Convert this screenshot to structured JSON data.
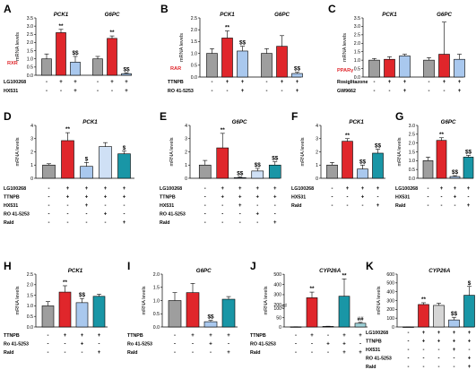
{
  "colors": {
    "gray": "#9e9e9e",
    "red": "#e0262b",
    "blue": "#a9c8ee",
    "teal": "#1996a6",
    "receptor": "#e0262b"
  },
  "chart_data": [
    {
      "panel": "A",
      "type": "bar",
      "receptor": "RXR",
      "titles": [
        "PCK1",
        "G6PC"
      ],
      "ylabel": "mRNA levels",
      "yticks": [
        "0.0",
        "0.5",
        "1.0",
        "1.5",
        "2.0",
        "2.5",
        "3.0",
        "3.5"
      ],
      "ylim": [
        0,
        3.5
      ],
      "series": [
        {
          "gene": "PCK1",
          "values": [
            1.0,
            2.6,
            0.8
          ],
          "errors": [
            0.3,
            0.2,
            0.35
          ],
          "colors": [
            "gray",
            "red",
            "blue"
          ],
          "annotations": [
            "",
            "**",
            "$$"
          ]
        },
        {
          "gene": "G6PC",
          "values": [
            1.0,
            2.25,
            0.1
          ],
          "errors": [
            0.15,
            0.15,
            0.05
          ],
          "colors": [
            "gray",
            "red",
            "blue"
          ],
          "annotations": [
            "",
            "**",
            "$$"
          ]
        }
      ],
      "conditions": [
        {
          "label": "LG100268",
          "signs": [
            "-",
            "+",
            "+",
            "-",
            "+",
            "+"
          ]
        },
        {
          "label": "HX531",
          "signs": [
            "-",
            "-",
            "+",
            "-",
            "-",
            "+"
          ]
        }
      ]
    },
    {
      "panel": "B",
      "type": "bar",
      "receptor": "RAR",
      "titles": [
        "PCK1",
        "G6PC"
      ],
      "ylabel": "mRNA levels",
      "yticks": [
        "0.0",
        "0.5",
        "1.0",
        "1.5",
        "2.0",
        "2.5"
      ],
      "ylim": [
        0,
        2.5
      ],
      "series": [
        {
          "gene": "PCK1",
          "values": [
            1.0,
            1.65,
            1.1
          ],
          "errors": [
            0.2,
            0.3,
            0.2
          ],
          "colors": [
            "gray",
            "red",
            "blue"
          ],
          "annotations": [
            "",
            "**",
            "$$"
          ]
        },
        {
          "gene": "G6PC",
          "values": [
            1.0,
            1.3,
            0.15
          ],
          "errors": [
            0.2,
            0.45,
            0.05
          ],
          "colors": [
            "gray",
            "red",
            "blue"
          ],
          "annotations": [
            "",
            "",
            "$$"
          ]
        }
      ],
      "conditions": [
        {
          "label": "TTNPB",
          "signs": [
            "-",
            "+",
            "+",
            "-",
            "+",
            "+"
          ]
        },
        {
          "label": "RO 41-5253",
          "signs": [
            "-",
            "-",
            "+",
            "-",
            "-",
            "+"
          ]
        }
      ]
    },
    {
      "panel": "C",
      "type": "bar",
      "receptor": "PPARγ",
      "titles": [
        "PCK1",
        "G6PC"
      ],
      "ylabel": "mRNA levels",
      "yticks": [
        "0.0",
        "0.5",
        "1.0",
        "1.5",
        "2.0",
        "2.5",
        "3.0",
        "3.5"
      ],
      "ylim": [
        0,
        3.5
      ],
      "series": [
        {
          "gene": "PCK1",
          "values": [
            1.0,
            1.05,
            1.25
          ],
          "errors": [
            0.1,
            0.15,
            0.1
          ],
          "colors": [
            "gray",
            "red",
            "blue"
          ],
          "annotations": [
            "",
            "",
            ""
          ]
        },
        {
          "gene": "G6PC",
          "values": [
            1.0,
            1.35,
            1.05
          ],
          "errors": [
            0.15,
            1.9,
            0.3
          ],
          "colors": [
            "gray",
            "red",
            "blue"
          ],
          "annotations": [
            "",
            "",
            ""
          ]
        }
      ],
      "conditions": [
        {
          "label": "Rosiglitazone",
          "signs": [
            "-",
            "+",
            "+",
            "-",
            "+",
            "+"
          ]
        },
        {
          "label": "GW9662",
          "signs": [
            "-",
            "-",
            "+",
            "-",
            "-",
            "+"
          ]
        }
      ]
    },
    {
      "panel": "D",
      "type": "bar",
      "receptor": "",
      "titles": [
        "PCK1"
      ],
      "ylabel": "mRNA levels",
      "yticks": [
        "0",
        "1",
        "2",
        "3",
        "4"
      ],
      "ylim": [
        0,
        4
      ],
      "series": [
        {
          "gene": "PCK1",
          "values": [
            1.0,
            2.85,
            0.9,
            2.4,
            1.85
          ],
          "errors": [
            0.1,
            0.6,
            0.3,
            0.3,
            0.2
          ],
          "colors": [
            "gray",
            "red",
            "blue",
            "lightblue",
            "teal"
          ],
          "annotations": [
            "",
            "**",
            "$",
            "",
            "$"
          ]
        }
      ],
      "conditions": [
        {
          "label": "LG100268",
          "signs": [
            "-",
            "+",
            "+",
            "+",
            "+"
          ]
        },
        {
          "label": "TTNPB",
          "signs": [
            "-",
            "+",
            "+",
            "+",
            "+"
          ]
        },
        {
          "label": "HX531",
          "signs": [
            "-",
            "-",
            "+",
            "-",
            "-"
          ]
        },
        {
          "label": "RO 41-5253",
          "signs": [
            "-",
            "-",
            "-",
            "+",
            "-"
          ]
        },
        {
          "label": "Rald",
          "signs": [
            "-",
            "-",
            "-",
            "-",
            "+"
          ]
        }
      ]
    },
    {
      "panel": "E",
      "type": "bar",
      "receptor": "",
      "titles": [
        "G6PC"
      ],
      "ylabel": "mRNA levels",
      "yticks": [
        "0",
        "1",
        "2",
        "3",
        "4"
      ],
      "ylim": [
        0,
        4
      ],
      "series": [
        {
          "gene": "G6PC",
          "values": [
            1.0,
            2.3,
            0.05,
            0.55,
            1.0
          ],
          "errors": [
            0.35,
            1.1,
            0.05,
            0.2,
            0.25
          ],
          "colors": [
            "gray",
            "red",
            "blue",
            "lightblue",
            "teal"
          ],
          "annotations": [
            "",
            "**",
            "$$",
            "$$",
            "$$"
          ]
        }
      ],
      "conditions": [
        {
          "label": "LG100268",
          "signs": [
            "-",
            "+",
            "+",
            "+",
            "+"
          ]
        },
        {
          "label": "TTNPB",
          "signs": [
            "-",
            "+",
            "+",
            "+",
            "+"
          ]
        },
        {
          "label": "HX531",
          "signs": [
            "-",
            "-",
            "+",
            "-",
            "-"
          ]
        },
        {
          "label": "RO 41-5253",
          "signs": [
            "-",
            "-",
            "-",
            "+",
            "-"
          ]
        },
        {
          "label": "Rald",
          "signs": [
            "-",
            "-",
            "-",
            "-",
            "+"
          ]
        }
      ]
    },
    {
      "panel": "F",
      "type": "bar",
      "receptor": "",
      "titles": [
        "PCK1"
      ],
      "ylabel": "mRNA levels",
      "yticks": [
        "0",
        "1",
        "2",
        "3",
        "4"
      ],
      "ylim": [
        0,
        4
      ],
      "series": [
        {
          "gene": "PCK1",
          "values": [
            1.0,
            2.8,
            0.7,
            1.9
          ],
          "errors": [
            0.2,
            0.2,
            0.3,
            0.3
          ],
          "colors": [
            "gray",
            "red",
            "blue",
            "teal"
          ],
          "annotations": [
            "",
            "**",
            "$$",
            "$$"
          ]
        }
      ],
      "conditions": [
        {
          "label": "LG100268",
          "signs": [
            "-",
            "+",
            "+",
            "+"
          ]
        },
        {
          "label": "HX531",
          "signs": [
            "-",
            "-",
            "+",
            "-"
          ]
        },
        {
          "label": "Rald",
          "signs": [
            "-",
            "-",
            "-",
            "+"
          ]
        }
      ]
    },
    {
      "panel": "G",
      "type": "bar",
      "receptor": "",
      "titles": [
        "G6PC"
      ],
      "ylabel": "mRNA levels",
      "yticks": [
        "0.0",
        "0.5",
        "1.0",
        "1.5",
        "2.0",
        "2.5",
        "3.0"
      ],
      "ylim": [
        0,
        3.0
      ],
      "series": [
        {
          "gene": "G6PC",
          "values": [
            1.0,
            2.15,
            0.1,
            1.2
          ],
          "errors": [
            0.2,
            0.15,
            0.05,
            0.1
          ],
          "colors": [
            "gray",
            "red",
            "blue",
            "teal"
          ],
          "annotations": [
            "",
            "**",
            "$$",
            "$$"
          ]
        }
      ],
      "conditions": [
        {
          "label": "LG100268",
          "signs": [
            "-",
            "+",
            "+",
            "+"
          ]
        },
        {
          "label": "HX531",
          "signs": [
            "-",
            "-",
            "+",
            "-"
          ]
        },
        {
          "label": "Rald",
          "signs": [
            "-",
            "-",
            "-",
            "+"
          ]
        }
      ]
    },
    {
      "panel": "H",
      "type": "bar",
      "receptor": "",
      "titles": [
        "PCK1"
      ],
      "ylabel": "mRNA levels",
      "yticks": [
        "0.0",
        "0.5",
        "1.0",
        "1.5",
        "2.0",
        "2.5"
      ],
      "ylim": [
        0,
        2.5
      ],
      "series": [
        {
          "gene": "PCK1",
          "values": [
            1.0,
            1.65,
            1.15,
            1.45
          ],
          "errors": [
            0.2,
            0.3,
            0.2,
            0.1
          ],
          "colors": [
            "gray",
            "red",
            "blue",
            "teal"
          ],
          "annotations": [
            "",
            "**",
            "$$",
            ""
          ]
        }
      ],
      "conditions": [
        {
          "label": "TTNPB",
          "signs": [
            "-",
            "+",
            "+",
            "+"
          ]
        },
        {
          "label": "Ro 41-5253",
          "signs": [
            "-",
            "-",
            "+",
            "-"
          ]
        },
        {
          "label": "Rald",
          "signs": [
            "-",
            "-",
            "-",
            "+"
          ]
        }
      ]
    },
    {
      "panel": "I",
      "type": "bar",
      "receptor": "",
      "titles": [
        "G6PC"
      ],
      "ylabel": "mRNA levels",
      "yticks": [
        "0.0",
        "0.5",
        "1.0",
        "1.5",
        "2.0"
      ],
      "ylim": [
        0,
        2.0
      ],
      "series": [
        {
          "gene": "G6PC",
          "values": [
            1.0,
            1.3,
            0.2,
            1.05
          ],
          "errors": [
            0.3,
            0.35,
            0.05,
            0.1
          ],
          "colors": [
            "gray",
            "red",
            "blue",
            "teal"
          ],
          "annotations": [
            "",
            "",
            "$$",
            ""
          ]
        }
      ],
      "conditions": [
        {
          "label": "TTNPB",
          "signs": [
            "-",
            "+",
            "+",
            "+"
          ]
        },
        {
          "label": "Ro 41-5253",
          "signs": [
            "-",
            "-",
            "+",
            "-"
          ]
        },
        {
          "label": "Rald",
          "signs": [
            "-",
            "-",
            "-",
            "+"
          ]
        }
      ]
    },
    {
      "panel": "J",
      "type": "bar",
      "receptor": "",
      "titles": [
        "CYP26A"
      ],
      "ylabel": "mRNA levels",
      "yticks": [
        "0",
        "50",
        "100",
        "200",
        "300",
        "400",
        "500"
      ],
      "ylim": [
        0,
        500
      ],
      "series": [
        {
          "gene": "CYP26A",
          "values": [
            1,
            270,
            3,
            285,
            20
          ],
          "errors": [
            0.3,
            55,
            1,
            170,
            5
          ],
          "colors": [
            "gray",
            "red",
            "blue",
            "teal",
            "lightteal"
          ],
          "annotations": [
            "",
            "**",
            "",
            "**",
            "##"
          ]
        }
      ],
      "conditions": [
        {
          "label": "TTNPB",
          "signs": [
            "-",
            "+",
            "-",
            "+",
            "+"
          ]
        },
        {
          "label": "RO 41-5253",
          "signs": [
            "-",
            "-",
            "+",
            "+",
            "-"
          ]
        },
        {
          "label": "Rald",
          "signs": [
            "-",
            "-",
            "-",
            "+",
            "+"
          ]
        }
      ]
    },
    {
      "panel": "K",
      "type": "bar",
      "receptor": "",
      "titles": [
        "CYP26A"
      ],
      "ylabel": "mRNA levels",
      "yticks": [
        "0",
        "100",
        "200",
        "300",
        "400",
        "500",
        "600"
      ],
      "ylim": [
        0,
        600
      ],
      "series": [
        {
          "gene": "CYP26A",
          "values": [
            1,
            255,
            245,
            80,
            360
          ],
          "errors": [
            1,
            20,
            25,
            30,
            100
          ],
          "colors": [
            "gray",
            "red",
            "lightgray",
            "blue",
            "teal"
          ],
          "annotations": [
            "",
            "**",
            "",
            "$$",
            "$"
          ]
        }
      ],
      "conditions": [
        {
          "label": "LG100268",
          "signs": [
            "-",
            "+",
            "+",
            "+",
            "+"
          ]
        },
        {
          "label": "TTNPB",
          "signs": [
            "-",
            "+",
            "+",
            "+",
            "+"
          ]
        },
        {
          "label": "HX531",
          "signs": [
            "-",
            "-",
            "-",
            "+",
            "-"
          ]
        },
        {
          "label": "RO 41-5253",
          "signs": [
            "-",
            "-",
            "-",
            "-",
            "+"
          ]
        },
        {
          "label": "Rald",
          "signs": [
            "-",
            "-",
            "-",
            "-",
            "+"
          ]
        }
      ]
    }
  ]
}
